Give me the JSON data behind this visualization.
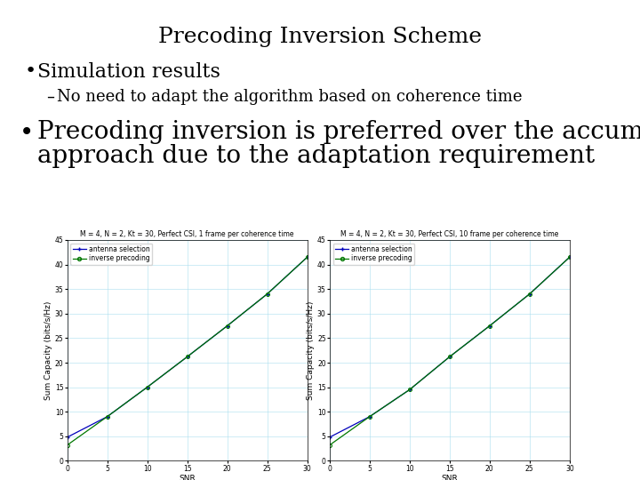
{
  "title": "Precoding Inversion Scheme",
  "bullet1": "Simulation results",
  "sub_bullet1": "No need to adapt the algorithm based on coherence time",
  "bullet2_line1": "Precoding inversion is preferred over the accumulated",
  "bullet2_line2": "approach due to the adaptation requirement",
  "plot1_title": "M = 4, N = 2, Kt = 30, Perfect CSI, 1 frame per coherence time",
  "plot2_title": "M = 4, N = 2, Kt = 30, Perfect CSI, 10 frame per coherence time",
  "snr": [
    0,
    5,
    10,
    15,
    20,
    25,
    30
  ],
  "antenna_sel_1": [
    4.8,
    9.0,
    15.0,
    21.2,
    27.5,
    34.0,
    41.5
  ],
  "inv_precoding_1": [
    3.2,
    9.0,
    15.0,
    21.2,
    27.5,
    34.0,
    41.5
  ],
  "antenna_sel_2": [
    4.8,
    9.0,
    14.5,
    21.2,
    27.5,
    34.0,
    41.5
  ],
  "inv_precoding_2": [
    3.2,
    9.0,
    14.5,
    21.2,
    27.5,
    34.0,
    41.5
  ],
  "ylabel": "Sum Capacity (bits/s/Hz)",
  "xlabel": "SNR",
  "ylim": [
    0,
    45
  ],
  "xlim": [
    0,
    30
  ],
  "yticks": [
    0,
    5,
    10,
    15,
    20,
    25,
    30,
    35,
    40,
    45
  ],
  "xticks": [
    0,
    5,
    10,
    15,
    20,
    25,
    30
  ],
  "antenna_color": "#0000bb",
  "inv_color": "#007700",
  "legend_antenna": "antenna selection",
  "legend_inv": "inverse precoding",
  "title_fontsize": 18,
  "bullet1_fontsize": 16,
  "sub_bullet_fontsize": 13,
  "bullet2_fontsize": 20,
  "plot_title_fontsize": 5.5,
  "axis_label_fontsize": 6.5,
  "tick_fontsize": 5.5,
  "legend_fontsize": 5.5
}
